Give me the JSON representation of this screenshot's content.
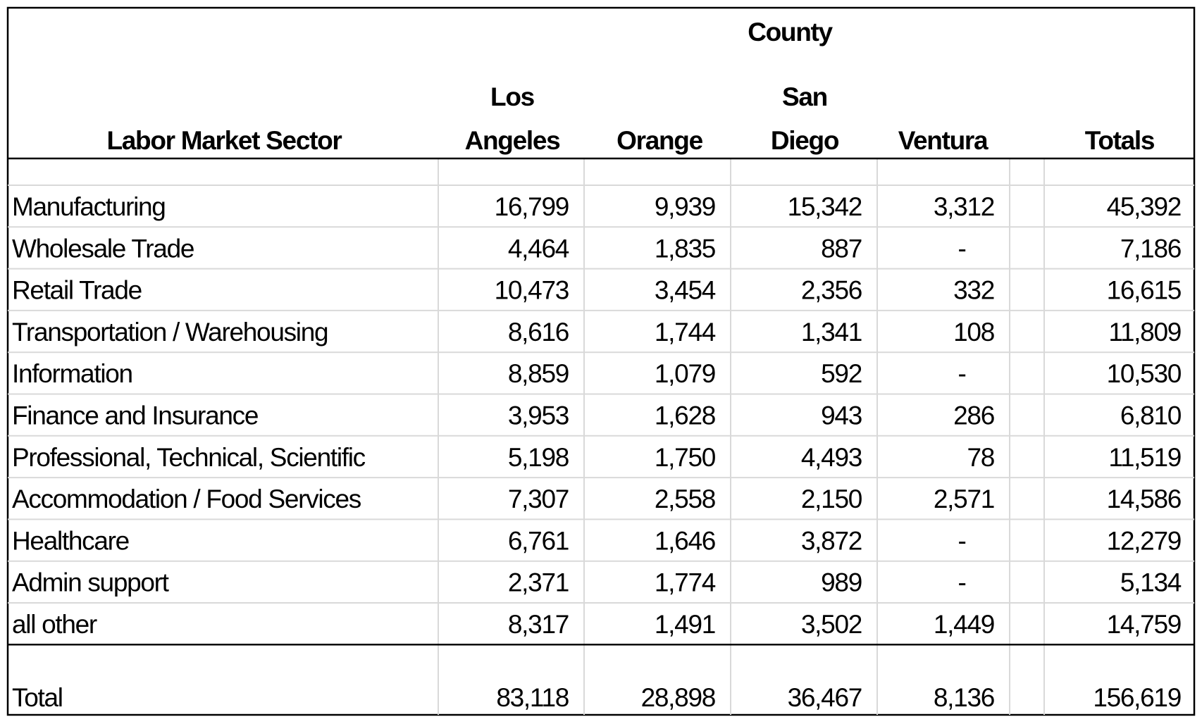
{
  "header": {
    "group_title": "County",
    "columns": [
      [
        "Labor Market Sector"
      ],
      [
        "Los",
        "Angeles"
      ],
      [
        "Orange"
      ],
      [
        "San",
        "Diego"
      ],
      [
        "Ventura"
      ],
      [
        "Totals"
      ]
    ]
  },
  "table": {
    "rows": [
      {
        "sector": "Manufacturing",
        "values": [
          "16,799",
          "9,939",
          "15,342",
          "3,312",
          "45,392"
        ]
      },
      {
        "sector": "Wholesale Trade",
        "values": [
          "4,464",
          "1,835",
          "887",
          "-",
          "7,186"
        ]
      },
      {
        "sector": "Retail Trade",
        "values": [
          "10,473",
          "3,454",
          "2,356",
          "332",
          "16,615"
        ]
      },
      {
        "sector": "Transportation / Warehousing",
        "values": [
          "8,616",
          "1,744",
          "1,341",
          "108",
          "11,809"
        ]
      },
      {
        "sector": "Information",
        "values": [
          "8,859",
          "1,079",
          "592",
          "-",
          "10,530"
        ]
      },
      {
        "sector": "Finance and Insurance",
        "values": [
          "3,953",
          "1,628",
          "943",
          "286",
          "6,810"
        ]
      },
      {
        "sector": "Professional, Technical, Scientific",
        "values": [
          "5,198",
          "1,750",
          "4,493",
          "78",
          "11,519"
        ]
      },
      {
        "sector": "Accommodation / Food Services",
        "values": [
          "7,307",
          "2,558",
          "2,150",
          "2,571",
          "14,586"
        ]
      },
      {
        "sector": "Healthcare",
        "values": [
          "6,761",
          "1,646",
          "3,872",
          "-",
          "12,279"
        ]
      },
      {
        "sector": "Admin support",
        "values": [
          "2,371",
          "1,774",
          "989",
          "-",
          "5,134"
        ]
      },
      {
        "sector": "all other",
        "values": [
          "8,317",
          "1,491",
          "3,502",
          "1,449",
          "14,759"
        ]
      }
    ],
    "total": {
      "sector": "Total",
      "values": [
        "83,118",
        "28,898",
        "36,467",
        "8,136",
        "156,619"
      ]
    }
  }
}
